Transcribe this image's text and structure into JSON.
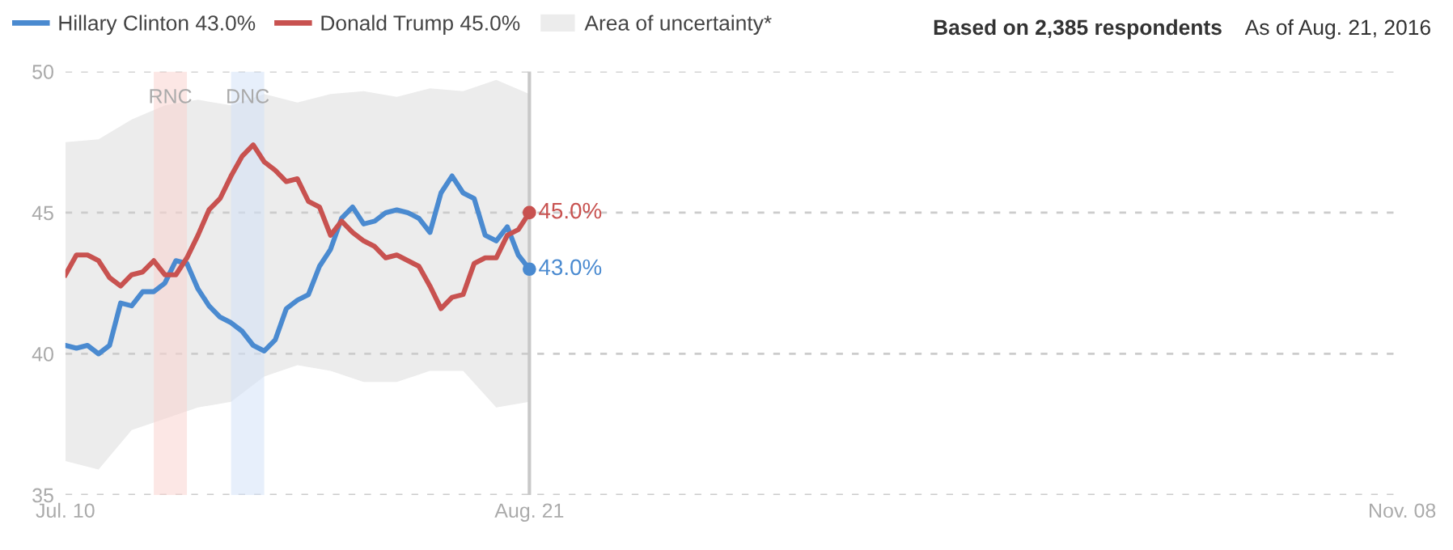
{
  "chart_data": {
    "type": "line",
    "x": [
      "2016-07-10",
      "2016-07-11",
      "2016-07-12",
      "2016-07-13",
      "2016-07-14",
      "2016-07-15",
      "2016-07-16",
      "2016-07-17",
      "2016-07-18",
      "2016-07-19",
      "2016-07-20",
      "2016-07-21",
      "2016-07-22",
      "2016-07-23",
      "2016-07-24",
      "2016-07-25",
      "2016-07-26",
      "2016-07-27",
      "2016-07-28",
      "2016-07-29",
      "2016-07-30",
      "2016-07-31",
      "2016-08-01",
      "2016-08-02",
      "2016-08-03",
      "2016-08-04",
      "2016-08-05",
      "2016-08-06",
      "2016-08-07",
      "2016-08-08",
      "2016-08-09",
      "2016-08-10",
      "2016-08-11",
      "2016-08-12",
      "2016-08-13",
      "2016-08-14",
      "2016-08-15",
      "2016-08-16",
      "2016-08-17",
      "2016-08-18",
      "2016-08-19",
      "2016-08-20",
      "2016-08-21"
    ],
    "series": [
      {
        "name": "Hillary Clinton 43.0%",
        "color": "#4a8ad0",
        "values": [
          40.3,
          40.2,
          40.3,
          40.0,
          40.3,
          41.8,
          41.7,
          42.2,
          42.2,
          42.5,
          43.3,
          43.2,
          42.3,
          41.7,
          41.3,
          41.1,
          40.8,
          40.3,
          40.1,
          40.5,
          41.6,
          41.9,
          42.1,
          43.1,
          43.7,
          44.8,
          45.2,
          44.6,
          44.7,
          45.0,
          45.1,
          45.0,
          44.8,
          44.3,
          45.7,
          46.3,
          45.7,
          45.5,
          44.2,
          44.0,
          44.5,
          43.5,
          43.0
        ]
      },
      {
        "name": "Donald Trump 45.0%",
        "color": "#c85250",
        "values": [
          42.8,
          43.5,
          43.5,
          43.3,
          42.7,
          42.4,
          42.8,
          42.9,
          43.3,
          42.8,
          42.8,
          43.4,
          44.2,
          45.1,
          45.5,
          46.3,
          47.0,
          47.4,
          46.8,
          46.5,
          46.1,
          46.2,
          45.4,
          45.2,
          44.2,
          44.7,
          44.3,
          44.0,
          43.8,
          43.4,
          43.5,
          43.3,
          43.1,
          42.4,
          41.6,
          42.0,
          42.1,
          43.2,
          43.4,
          43.4,
          44.2,
          44.4,
          45.0
        ]
      },
      {
        "name": "Area of uncertainty*",
        "type": "line",
        "color": "#ececec",
        "x": [
          "2016-07-10",
          "2016-07-13",
          "2016-07-16",
          "2016-07-19",
          "2016-07-22",
          "2016-07-25",
          "2016-07-28",
          "2016-07-31",
          "2016-08-03",
          "2016-08-06",
          "2016-08-09",
          "2016-08-12",
          "2016-08-15",
          "2016-08-18",
          "2016-08-21"
        ],
        "values": [
          null,
          null,
          null,
          null,
          null,
          null,
          null,
          null,
          null,
          null,
          null,
          null,
          null,
          null,
          null
        ],
        "lower": [
          36.2,
          35.9,
          37.3,
          37.7,
          38.1,
          38.3,
          39.2,
          39.6,
          39.4,
          39.0,
          39.0,
          39.4,
          39.4,
          38.1,
          38.3
        ],
        "upper": [
          47.5,
          47.6,
          48.3,
          48.8,
          49.0,
          48.8,
          49.2,
          48.9,
          49.2,
          49.3,
          49.1,
          49.4,
          49.3,
          49.7,
          49.2
        ]
      }
    ],
    "xlim": [
      "2016-07-10",
      "2016-11-08"
    ],
    "xticks": [
      {
        "value": "2016-07-10",
        "label": "Jul. 10"
      },
      {
        "value": "2016-08-21",
        "label": "Aug. 21"
      },
      {
        "value": "2016-11-08",
        "label": "Nov. 08"
      }
    ],
    "ylim": [
      35,
      50
    ],
    "yticks": [
      35,
      40,
      45,
      50
    ],
    "bands": [
      {
        "axis": "x",
        "from": "2016-07-18",
        "to": "2016-07-21",
        "label": "RNC",
        "color": "#f9d3cf"
      },
      {
        "axis": "x",
        "from": "2016-07-25",
        "to": "2016-07-28",
        "label": "DNC",
        "color": "#d3e1f7"
      }
    ],
    "ref_lines": [
      {
        "axis": "x",
        "value": "2016-08-21",
        "color": "#c8c8c8"
      }
    ],
    "annotations": [
      {
        "text": "45.0%",
        "x": "2016-08-21",
        "y": 45.0
      },
      {
        "text": "43.0%",
        "x": "2016-08-21",
        "y": 43.0
      },
      "Based on 2,385 respondents",
      "As of Aug. 21, 2016"
    ],
    "grid": "y",
    "legend": "top",
    "marker": "none",
    "line_style": "solid"
  }
}
